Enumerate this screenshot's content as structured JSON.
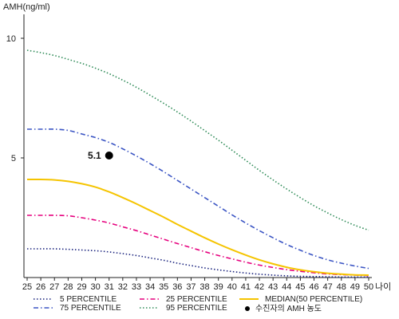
{
  "chart_data": {
    "type": "line",
    "ylabel": "AMH(ng/ml)",
    "xlabel": "나이",
    "xlim": [
      25,
      50
    ],
    "ylim": [
      0,
      11
    ],
    "x_ticks": [
      25,
      26,
      27,
      28,
      29,
      30,
      31,
      32,
      33,
      34,
      35,
      36,
      37,
      38,
      39,
      40,
      41,
      42,
      43,
      44,
      45,
      46,
      47,
      48,
      49,
      50
    ],
    "y_ticks": [
      5,
      10
    ],
    "x": [
      25,
      26,
      27,
      28,
      29,
      30,
      31,
      32,
      33,
      34,
      35,
      36,
      37,
      38,
      39,
      40,
      41,
      42,
      43,
      44,
      45,
      46,
      47,
      48,
      49,
      50
    ],
    "series": [
      {
        "name": "5 PERCENTILE",
        "color": "#1a237e",
        "style": "dotted",
        "values": [
          1.2,
          1.2,
          1.2,
          1.18,
          1.15,
          1.12,
          1.07,
          1.0,
          0.92,
          0.82,
          0.72,
          0.6,
          0.5,
          0.4,
          0.32,
          0.25,
          0.19,
          0.14,
          0.1,
          0.07,
          0.05,
          0.04,
          0.03,
          0.02,
          0.02,
          0.02
        ]
      },
      {
        "name": "25 PERCENTILE",
        "color": "#e6007e",
        "style": "dashdot",
        "values": [
          2.6,
          2.6,
          2.6,
          2.58,
          2.5,
          2.4,
          2.28,
          2.12,
          1.96,
          1.78,
          1.6,
          1.42,
          1.25,
          1.08,
          0.92,
          0.78,
          0.64,
          0.52,
          0.42,
          0.33,
          0.26,
          0.2,
          0.15,
          0.12,
          0.1,
          0.08
        ]
      },
      {
        "name": "MEDIAN(50 PERCENTILE)",
        "color": "#f5c400",
        "style": "solid",
        "values": [
          4.1,
          4.1,
          4.08,
          4.02,
          3.92,
          3.78,
          3.58,
          3.34,
          3.08,
          2.8,
          2.52,
          2.22,
          1.94,
          1.66,
          1.4,
          1.16,
          0.94,
          0.74,
          0.57,
          0.43,
          0.32,
          0.24,
          0.18,
          0.14,
          0.11,
          0.1
        ]
      },
      {
        "name": "75 PERCENTILE",
        "color": "#3b55c4",
        "style": "dashdot",
        "values": [
          6.2,
          6.2,
          6.2,
          6.15,
          6.0,
          5.85,
          5.65,
          5.38,
          5.08,
          4.76,
          4.42,
          4.06,
          3.7,
          3.34,
          2.98,
          2.62,
          2.28,
          1.96,
          1.66,
          1.38,
          1.14,
          0.92,
          0.74,
          0.6,
          0.48,
          0.38
        ]
      },
      {
        "name": "95 PERCENTILE",
        "color": "#2e8b57",
        "style": "dotted",
        "values": [
          9.5,
          9.4,
          9.28,
          9.12,
          8.95,
          8.75,
          8.52,
          8.25,
          7.95,
          7.62,
          7.28,
          6.92,
          6.54,
          6.14,
          5.74,
          5.32,
          4.9,
          4.48,
          4.08,
          3.7,
          3.34,
          3.0,
          2.7,
          2.42,
          2.18,
          1.98
        ]
      }
    ],
    "markers": [
      {
        "name": "수진자의 AMH 농도",
        "x": 31,
        "y": 5.1,
        "label": "5.1",
        "color": "#000000"
      }
    ],
    "legend_position": "bottom",
    "grid": false
  }
}
